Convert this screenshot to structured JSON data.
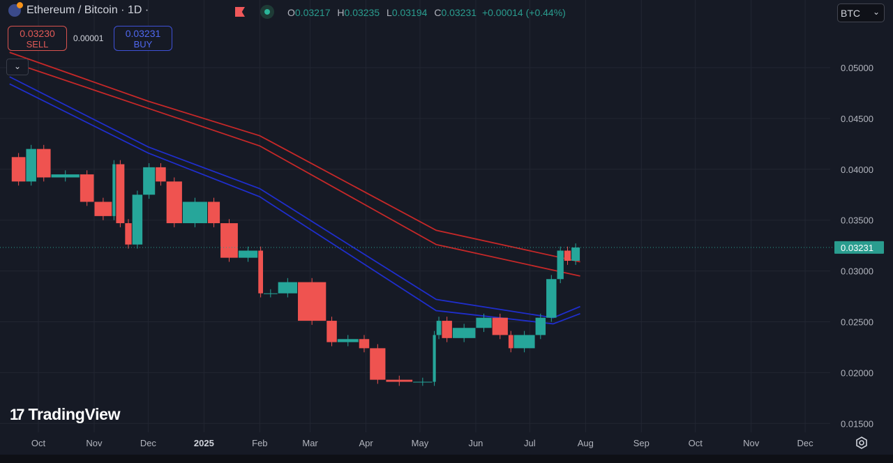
{
  "header": {
    "title": "Ethereum / Bitcoin · 1D ·",
    "ohlc": {
      "o_label": "O",
      "o": "0.03217",
      "h_label": "H",
      "h": "0.03235",
      "l_label": "L",
      "l": "0.03194",
      "c_label": "C",
      "c": "0.03231",
      "change": "+0.00014 (+0.44%)"
    }
  },
  "trade": {
    "sell_price": "0.03230",
    "sell_label": "SELL",
    "spread": "0.00001",
    "buy_price": "0.03231",
    "buy_label": "BUY"
  },
  "currency": {
    "selected": "BTC"
  },
  "branding": "TradingView",
  "icons": {
    "collapse": "chevron-down-icon",
    "flag": "flag-icon",
    "status": "live-dot-icon",
    "settings": "gear-icon"
  },
  "colors": {
    "background": "#161a25",
    "up": "#26a69a",
    "down": "#ef5350",
    "ma_red": "#c62828",
    "ma_blue": "#1f2ecc",
    "last_price": "#2a9d8f"
  },
  "chart_data": {
    "type": "candlestick",
    "symbol": "ETH/BTC",
    "interval": "1D",
    "ylim": [
      0.015,
      0.052
    ],
    "xlim": [
      "2024-09-15",
      "2025-12-31"
    ],
    "y_ticks": [
      "0.05000",
      "0.04500",
      "0.04000",
      "0.03500",
      "0.03000",
      "0.02500",
      "0.02000",
      "0.01500"
    ],
    "x_ticks": [
      {
        "label": "Oct",
        "date": "2024-10-01"
      },
      {
        "label": "Nov",
        "date": "2024-11-01"
      },
      {
        "label": "Dec",
        "date": "2024-12-01"
      },
      {
        "label": "2025",
        "date": "2025-01-01",
        "bold": true
      },
      {
        "label": "Feb",
        "date": "2025-02-01"
      },
      {
        "label": "Mar",
        "date": "2025-03-01"
      },
      {
        "label": "Apr",
        "date": "2025-04-01"
      },
      {
        "label": "May",
        "date": "2025-05-01"
      },
      {
        "label": "Jun",
        "date": "2025-06-01"
      },
      {
        "label": "Jul",
        "date": "2025-07-01"
      },
      {
        "label": "Aug",
        "date": "2025-08-01"
      },
      {
        "label": "Sep",
        "date": "2025-09-01"
      },
      {
        "label": "Oct",
        "date": "2025-10-01"
      },
      {
        "label": "Nov",
        "date": "2025-11-01"
      },
      {
        "label": "Dec",
        "date": "2025-12-01"
      }
    ],
    "last_price": "0.03231",
    "closes": [
      [
        "2024-09-16",
        0.0412
      ],
      [
        "2024-09-24",
        0.0388
      ],
      [
        "2024-09-30",
        0.042
      ],
      [
        "2024-10-08",
        0.0392
      ],
      [
        "2024-10-24",
        0.0395
      ],
      [
        "2024-11-01",
        0.0368
      ],
      [
        "2024-11-11",
        0.0354
      ],
      [
        "2024-11-13",
        0.0405
      ],
      [
        "2024-11-18",
        0.0347
      ],
      [
        "2024-11-22",
        0.0326
      ],
      [
        "2024-11-28",
        0.0375
      ],
      [
        "2024-12-05",
        0.0402
      ],
      [
        "2024-12-11",
        0.0388
      ],
      [
        "2024-12-20",
        0.0347
      ],
      [
        "2025-01-03",
        0.0368
      ],
      [
        "2025-01-10",
        0.0347
      ],
      [
        "2025-01-20",
        0.0313
      ],
      [
        "2025-01-31",
        0.032
      ],
      [
        "2025-02-03",
        0.0278
      ],
      [
        "2025-02-11",
        0.0278
      ],
      [
        "2025-02-22",
        0.0289
      ],
      [
        "2025-03-10",
        0.0251
      ],
      [
        "2025-03-16",
        0.023
      ],
      [
        "2025-03-28",
        0.0233
      ],
      [
        "2025-04-03",
        0.0224
      ],
      [
        "2025-04-12",
        0.0193
      ],
      [
        "2025-04-27",
        0.0191
      ],
      [
        "2025-05-08",
        0.0191
      ],
      [
        "2025-05-10",
        0.0237
      ],
      [
        "2025-05-13",
        0.0251
      ],
      [
        "2025-05-19",
        0.0234
      ],
      [
        "2025-06-01",
        0.0244
      ],
      [
        "2025-06-10",
        0.0254
      ],
      [
        "2025-06-19",
        0.0237
      ],
      [
        "2025-06-22",
        0.0224
      ],
      [
        "2025-07-04",
        0.0237
      ],
      [
        "2025-07-10",
        0.0254
      ],
      [
        "2025-07-16",
        0.0292
      ],
      [
        "2025-07-20",
        0.032
      ],
      [
        "2025-07-24",
        0.031
      ],
      [
        "2025-07-29",
        0.03231
      ]
    ],
    "moving_averages": [
      {
        "color": "#c62828",
        "points": [
          [
            "2024-09-15",
            0.0515
          ],
          [
            "2024-12-01",
            0.0467
          ],
          [
            "2025-02-01",
            0.0433
          ],
          [
            "2025-05-10",
            0.034
          ],
          [
            "2025-07-29",
            0.0309
          ]
        ]
      },
      {
        "color": "#c62828",
        "points": [
          [
            "2024-09-15",
            0.0506
          ],
          [
            "2024-12-01",
            0.046
          ],
          [
            "2025-02-01",
            0.0423
          ],
          [
            "2025-05-10",
            0.0326
          ],
          [
            "2025-07-29",
            0.0295
          ]
        ]
      },
      {
        "color": "#1f2ecc",
        "points": [
          [
            "2024-09-15",
            0.0491
          ],
          [
            "2024-12-01",
            0.0422
          ],
          [
            "2025-02-01",
            0.0381
          ],
          [
            "2025-05-10",
            0.0272
          ],
          [
            "2025-07-14",
            0.0254
          ],
          [
            "2025-07-29",
            0.0265
          ]
        ]
      },
      {
        "color": "#1f2ecc",
        "points": [
          [
            "2024-09-15",
            0.0484
          ],
          [
            "2024-12-01",
            0.0416
          ],
          [
            "2025-02-01",
            0.0373
          ],
          [
            "2025-05-10",
            0.0261
          ],
          [
            "2025-07-14",
            0.0248
          ],
          [
            "2025-07-29",
            0.0258
          ]
        ]
      }
    ],
    "grid": true
  }
}
